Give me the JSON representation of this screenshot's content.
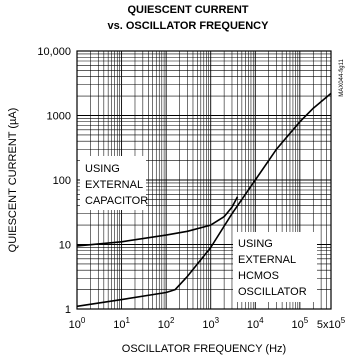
{
  "chart_data": {
    "type": "line",
    "title_line1": "QUIESCENT CURRENT",
    "title_line2": "vs. OSCILLATOR FREQUENCY",
    "xlabel": "OSCILLATOR FREQUENCY (Hz)",
    "ylabel": "QUIESCENT CURRENT (µA)",
    "x_scale": "log",
    "y_scale": "log",
    "xlim": [
      1,
      500000
    ],
    "ylim": [
      1,
      10000
    ],
    "grid": true,
    "figure_id": "MAX044-fig11",
    "x_ticks": [
      {
        "value": 1,
        "base": "10",
        "exp": "0"
      },
      {
        "value": 10,
        "base": "10",
        "exp": "1"
      },
      {
        "value": 100,
        "base": "10",
        "exp": "2"
      },
      {
        "value": 1000,
        "base": "10",
        "exp": "3"
      },
      {
        "value": 10000,
        "base": "10",
        "exp": "4"
      },
      {
        "value": 100000,
        "base": "10",
        "exp": "5"
      },
      {
        "value": 500000,
        "base": "5x10",
        "exp": "5"
      }
    ],
    "y_ticks": [
      {
        "value": 1,
        "label": "1"
      },
      {
        "value": 10,
        "label": "10"
      },
      {
        "value": 100,
        "label": "100"
      },
      {
        "value": 1000,
        "label": "1000"
      },
      {
        "value": 10000,
        "label": "10,000"
      }
    ],
    "series": [
      {
        "annotation": [
          "USING",
          "EXTERNAL",
          "CAPACITOR"
        ],
        "x": [
          1,
          10,
          100,
          300,
          1000,
          2000,
          3000,
          4000
        ],
        "y": [
          9.5,
          11,
          14,
          16,
          20,
          27,
          38,
          55
        ]
      },
      {
        "annotation": [
          "USING",
          "EXTERNAL",
          "HCMOS",
          "OSCILLATOR"
        ],
        "x": [
          1,
          10,
          100,
          160,
          300,
          1000,
          3000,
          10000,
          30000,
          100000,
          200000,
          500000
        ],
        "y": [
          1.1,
          1.4,
          1.8,
          2.0,
          3.2,
          9,
          30,
          100,
          300,
          800,
          1300,
          2200
        ]
      }
    ]
  }
}
